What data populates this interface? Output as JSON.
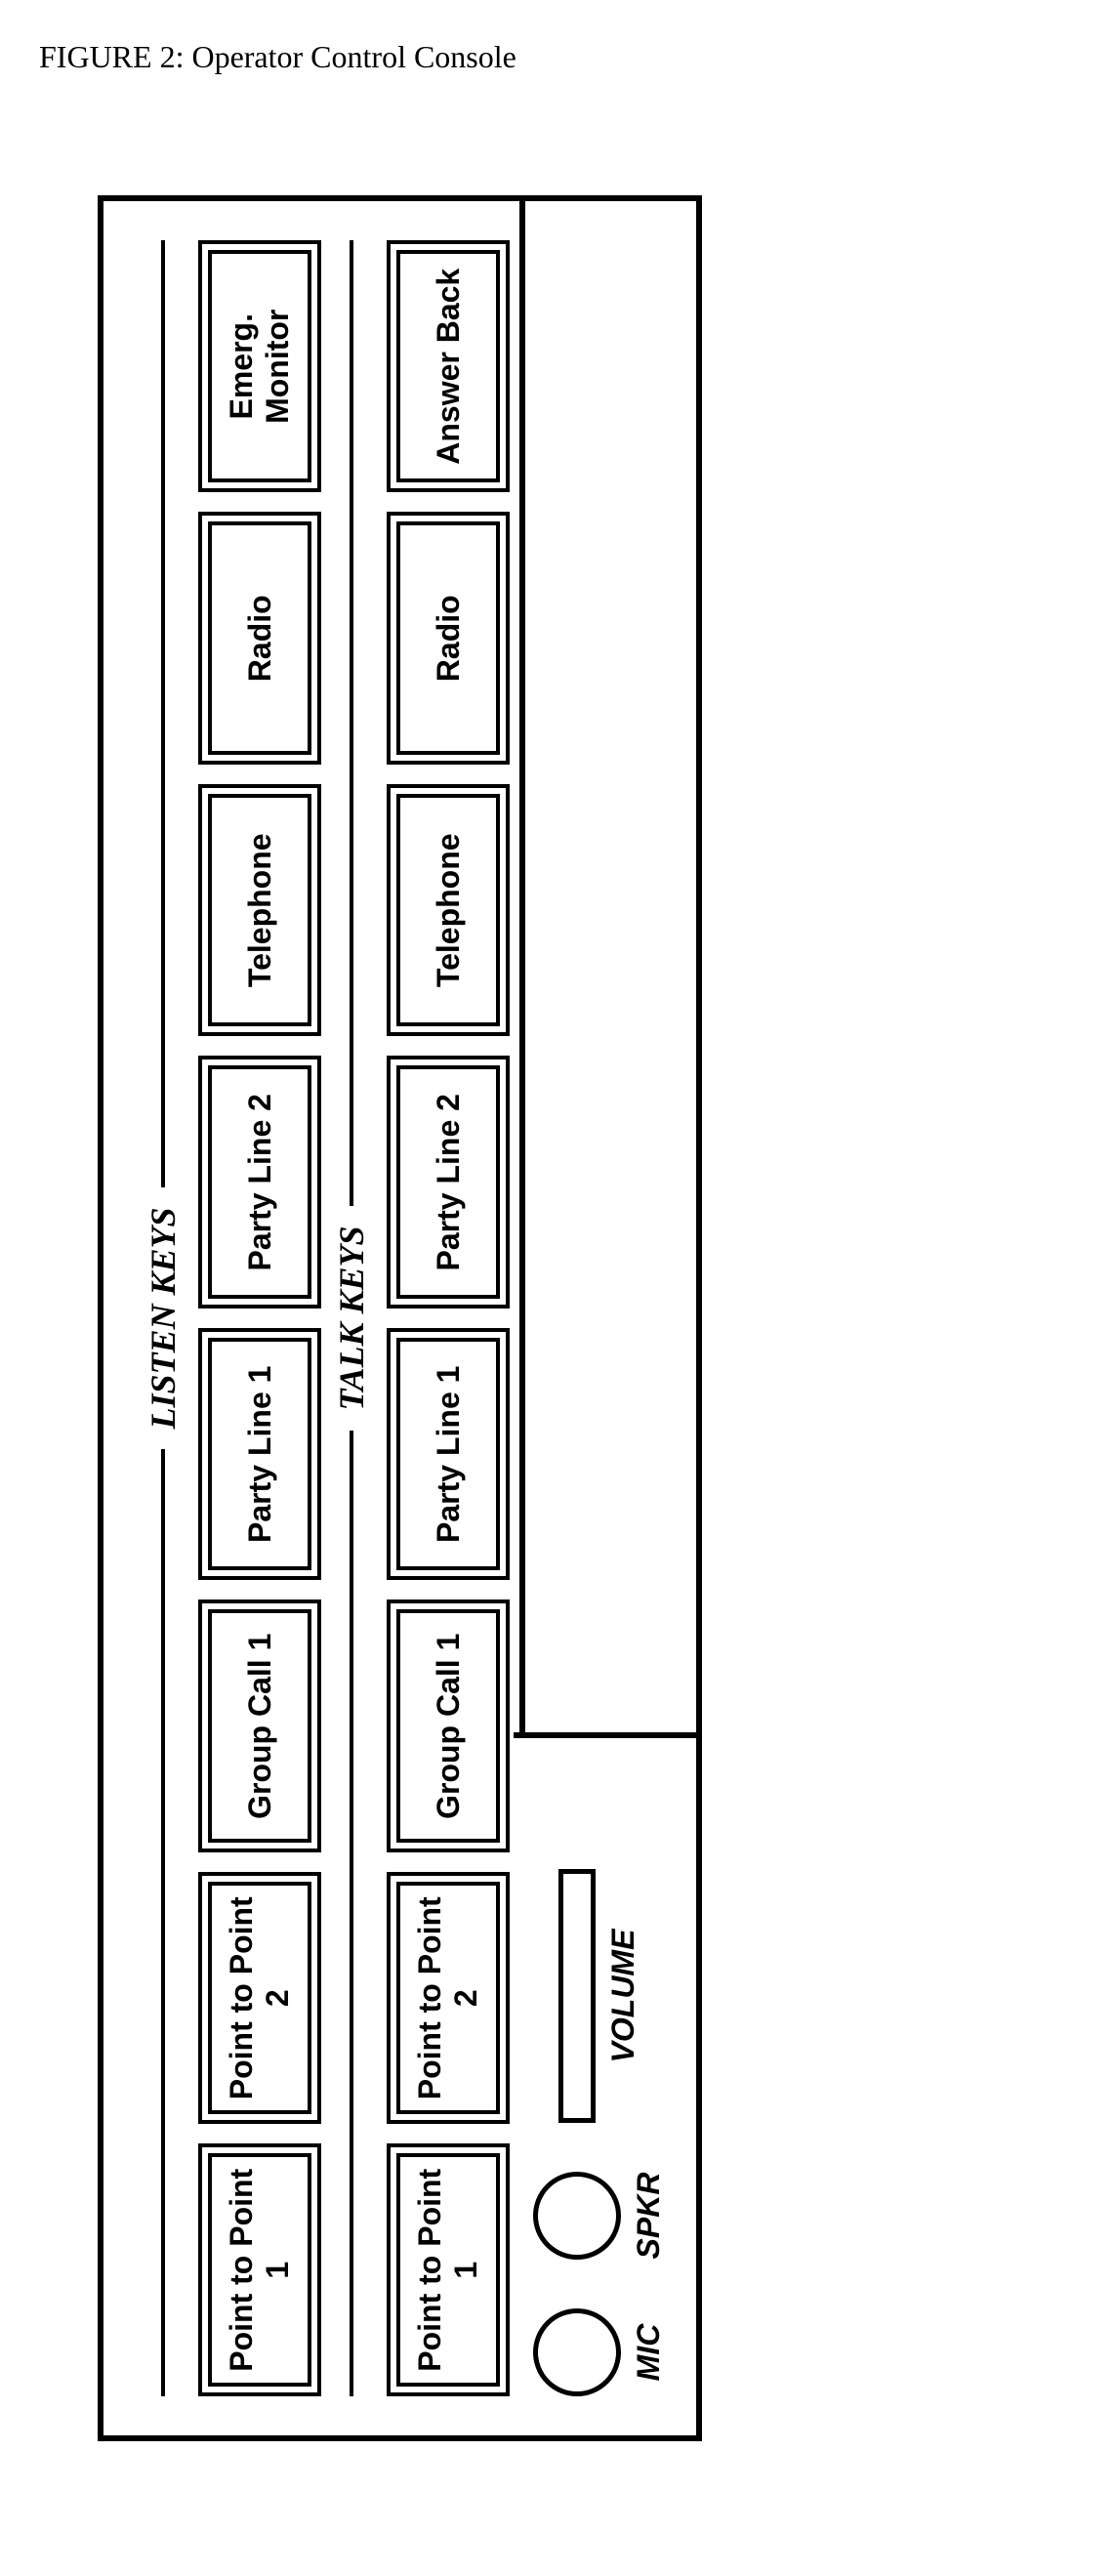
{
  "figure": {
    "title": "FIGURE 2:  Operator Control Console"
  },
  "console": {
    "listen": {
      "label": "LISTEN KEYS",
      "keys": [
        "Point to Point 1",
        "Point to Point 2",
        "Group Call 1",
        "Party Line 1",
        "Party Line 2",
        "Telephone",
        "Radio",
        "Emerg. Monitor"
      ]
    },
    "talk": {
      "label": "TALK KEYS",
      "keys": [
        "Point to Point 1",
        "Point to Point 2",
        "Group Call 1",
        "Party Line 1",
        "Party Line 2",
        "Telephone",
        "Radio",
        "Answer Back"
      ]
    },
    "controls": {
      "mic": "MIC",
      "spkr": "SPKR",
      "volume": "VOLUME"
    }
  },
  "style": {
    "border_color": "#000000",
    "background_color": "#ffffff",
    "font_family_title": "Times New Roman",
    "font_family_keys": "Arial",
    "key_border_width": 4,
    "console_border_width": 6,
    "circle_diameter": 90
  }
}
